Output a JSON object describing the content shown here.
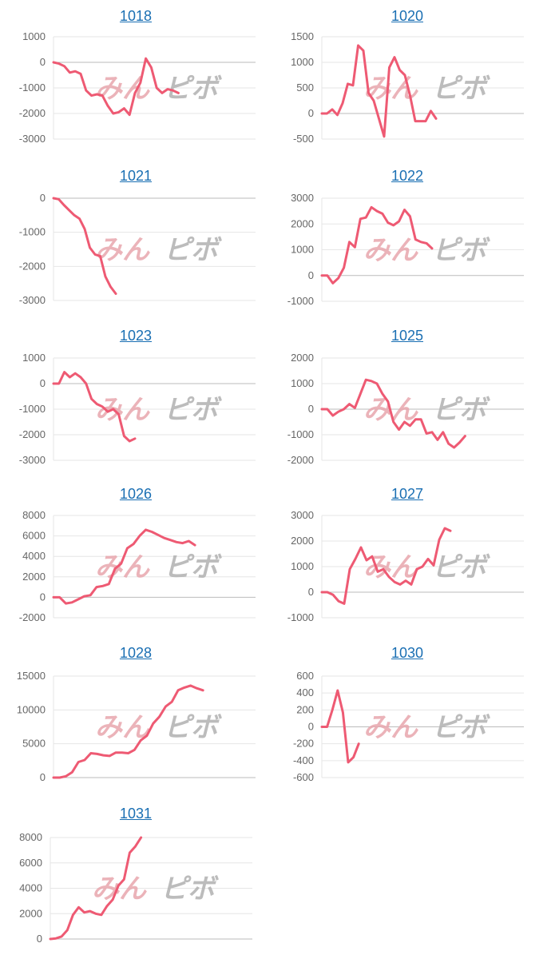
{
  "watermark": {
    "part1": "みん",
    "part2": "ピボ"
  },
  "colors": {
    "line": "#ee5a73",
    "title_link": "#1a6fb3",
    "axis": "#bbbbbb",
    "grid": "#e6e6e6",
    "tick_text": "#666666"
  },
  "chart_data": [
    {
      "type": "line",
      "title": "1018",
      "ylim": [
        -3000,
        1000
      ],
      "yticks": [
        1000,
        0,
        -1000,
        -2000,
        -3000
      ],
      "values": [
        0,
        -50,
        -150,
        -400,
        -350,
        -450,
        -1100,
        -1300,
        -1250,
        -1300,
        -1700,
        -2000,
        -1950,
        -1800,
        -2050,
        -1200,
        -800,
        150,
        -200,
        -1000,
        -1200,
        -1050,
        -1100,
        -1200
      ]
    },
    {
      "type": "line",
      "title": "1020",
      "ylim": [
        -500,
        1500
      ],
      "yticks": [
        1500,
        1000,
        500,
        0,
        -500
      ],
      "values": [
        0,
        0,
        80,
        -30,
        200,
        580,
        550,
        1330,
        1230,
        400,
        250,
        -100,
        -450,
        900,
        1100,
        850,
        750,
        350,
        -150,
        -150,
        -150,
        50,
        -100
      ]
    },
    {
      "type": "line",
      "title": "1021",
      "ylim": [
        -3000,
        0
      ],
      "yticks": [
        0,
        -1000,
        -2000,
        -3000
      ],
      "values": [
        0,
        -30,
        -200,
        -350,
        -500,
        -600,
        -900,
        -1450,
        -1650,
        -1700,
        -2300,
        -2600,
        -2800
      ]
    },
    {
      "type": "line",
      "title": "1022",
      "ylim": [
        -1000,
        3000
      ],
      "yticks": [
        3000,
        2000,
        1000,
        0,
        -1000
      ],
      "values": [
        0,
        0,
        -300,
        -100,
        300,
        1300,
        1100,
        2200,
        2250,
        2650,
        2500,
        2400,
        2050,
        1950,
        2100,
        2550,
        2300,
        1400,
        1300,
        1250,
        1050
      ]
    },
    {
      "type": "line",
      "title": "1023",
      "ylim": [
        -3000,
        1000
      ],
      "yticks": [
        1000,
        0,
        -1000,
        -2000,
        -3000
      ],
      "values": [
        0,
        0,
        450,
        250,
        400,
        250,
        0,
        -600,
        -800,
        -900,
        -1100,
        -1000,
        -1200,
        -2050,
        -2250,
        -2150
      ]
    },
    {
      "type": "line",
      "title": "1025",
      "ylim": [
        -2000,
        2000
      ],
      "yticks": [
        2000,
        1000,
        0,
        -1000,
        -2000
      ],
      "values": [
        0,
        0,
        -250,
        -100,
        0,
        200,
        50,
        600,
        1150,
        1100,
        1000,
        600,
        300,
        -500,
        -800,
        -500,
        -650,
        -400,
        -400,
        -950,
        -900,
        -1200,
        -900,
        -1350,
        -1500,
        -1300,
        -1050
      ]
    },
    {
      "type": "line",
      "title": "1026",
      "ylim": [
        -2000,
        8000
      ],
      "yticks": [
        8000,
        6000,
        4000,
        2000,
        0,
        -2000
      ],
      "values": [
        0,
        0,
        -600,
        -500,
        -200,
        100,
        200,
        1000,
        1100,
        1300,
        2800,
        3300,
        4800,
        5200,
        6000,
        6600,
        6400,
        6100,
        5800,
        5600,
        5400,
        5300,
        5500,
        5100
      ]
    },
    {
      "type": "line",
      "title": "1027",
      "ylim": [
        -1000,
        3000
      ],
      "yticks": [
        3000,
        2000,
        1000,
        0,
        -1000
      ],
      "values": [
        0,
        0,
        -100,
        -350,
        -450,
        900,
        1300,
        1750,
        1250,
        1400,
        800,
        900,
        600,
        400,
        300,
        450,
        300,
        900,
        1000,
        1300,
        1050,
        2050,
        2500,
        2400
      ]
    },
    {
      "type": "line",
      "title": "1028",
      "ylim": [
        0,
        15000
      ],
      "yticks": [
        15000,
        10000,
        5000,
        0
      ],
      "values": [
        0,
        0,
        200,
        800,
        2300,
        2600,
        3600,
        3500,
        3300,
        3200,
        3700,
        3700,
        3600,
        4100,
        5500,
        6200,
        8000,
        9000,
        10500,
        11200,
        12900,
        13300,
        13600,
        13200,
        12900
      ]
    },
    {
      "type": "line",
      "title": "1030",
      "ylim": [
        -600,
        600
      ],
      "yticks": [
        600,
        400,
        200,
        0,
        -200,
        -400,
        -600
      ],
      "values": [
        0,
        0,
        200,
        430,
        170,
        -420,
        -360,
        -200
      ]
    },
    {
      "type": "line",
      "title": "1031",
      "ylim": [
        0,
        8000
      ],
      "yticks": [
        8000,
        6000,
        4000,
        2000,
        0
      ],
      "values": [
        0,
        50,
        200,
        700,
        1900,
        2500,
        2100,
        2200,
        2000,
        1900,
        2600,
        3100,
        4200,
        4700,
        6800,
        7300,
        8000
      ]
    }
  ]
}
